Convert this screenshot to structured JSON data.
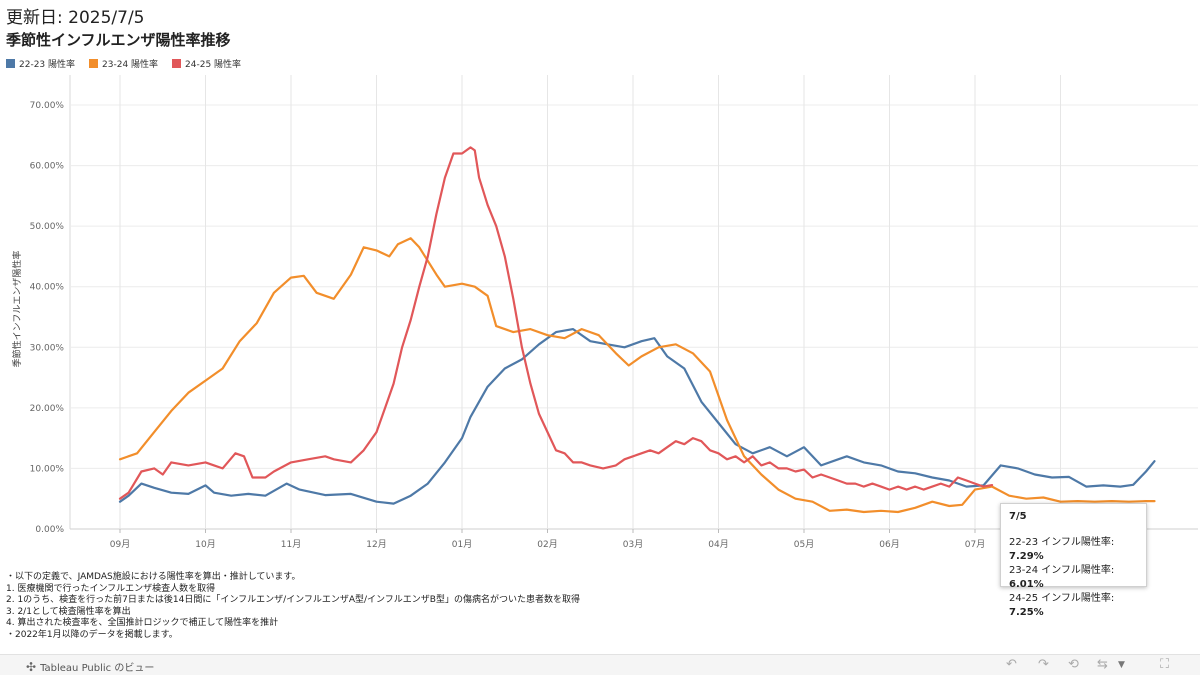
{
  "header": {
    "updated": "更新日: 2025/7/5",
    "title": "季節性インフルエンザ陽性率推移"
  },
  "legend": [
    {
      "label": "22-23 陽性率",
      "color": "#4e79a7"
    },
    {
      "label": "23-24 陽性率",
      "color": "#f28e2b"
    },
    {
      "label": "24-25 陽性率",
      "color": "#e15759"
    }
  ],
  "chart_data": {
    "type": "line",
    "ylabel": "季節性インフルエンザ陽性率",
    "ylim": [
      0,
      70
    ],
    "y_ticks": [
      "0.00%",
      "10.00%",
      "20.00%",
      "30.00%",
      "40.00%",
      "50.00%",
      "60.00%",
      "70.00%"
    ],
    "x_ticks": [
      "09月",
      "10月",
      "11月",
      "12月",
      "01月",
      "02月",
      "03月",
      "04月",
      "05月",
      "06月",
      "07月",
      "08月"
    ],
    "x_unit": "month index from start of 09月",
    "grid": true,
    "legend_position": "top-left",
    "series": [
      {
        "name": "22-23 陽性率",
        "color": "#4e79a7",
        "points": [
          [
            0,
            4.5
          ],
          [
            0.1,
            5.5
          ],
          [
            0.25,
            7.5
          ],
          [
            0.4,
            6.8
          ],
          [
            0.6,
            6.0
          ],
          [
            0.8,
            5.8
          ],
          [
            1.0,
            7.2
          ],
          [
            1.1,
            6.0
          ],
          [
            1.3,
            5.5
          ],
          [
            1.5,
            5.8
          ],
          [
            1.7,
            5.5
          ],
          [
            1.95,
            7.5
          ],
          [
            2.1,
            6.5
          ],
          [
            2.4,
            5.6
          ],
          [
            2.7,
            5.8
          ],
          [
            3.0,
            4.5
          ],
          [
            3.2,
            4.2
          ],
          [
            3.4,
            5.5
          ],
          [
            3.6,
            7.5
          ],
          [
            3.8,
            11.0
          ],
          [
            4.0,
            15.0
          ],
          [
            4.1,
            18.5
          ],
          [
            4.3,
            23.5
          ],
          [
            4.5,
            26.5
          ],
          [
            4.7,
            28.0
          ],
          [
            4.9,
            30.5
          ],
          [
            5.1,
            32.5
          ],
          [
            5.3,
            33.0
          ],
          [
            5.5,
            31.0
          ],
          [
            5.7,
            30.5
          ],
          [
            5.9,
            30.0
          ],
          [
            6.1,
            31.0
          ],
          [
            6.25,
            31.5
          ],
          [
            6.4,
            28.5
          ],
          [
            6.6,
            26.5
          ],
          [
            6.8,
            21.0
          ],
          [
            7.0,
            17.5
          ],
          [
            7.2,
            14.0
          ],
          [
            7.4,
            12.5
          ],
          [
            7.6,
            13.5
          ],
          [
            7.8,
            12.0
          ],
          [
            8.0,
            13.5
          ],
          [
            8.1,
            12.0
          ],
          [
            8.2,
            10.5
          ],
          [
            8.4,
            11.5
          ],
          [
            8.5,
            12.0
          ],
          [
            8.7,
            11.0
          ],
          [
            8.9,
            10.5
          ],
          [
            9.1,
            9.5
          ],
          [
            9.3,
            9.2
          ],
          [
            9.5,
            8.5
          ],
          [
            9.7,
            8.0
          ],
          [
            9.9,
            7.0
          ],
          [
            10.1,
            7.2
          ],
          [
            10.3,
            10.5
          ],
          [
            10.5,
            10.0
          ],
          [
            10.7,
            9.0
          ],
          [
            10.9,
            8.5
          ],
          [
            11.1,
            8.6
          ],
          [
            11.3,
            7.0
          ],
          [
            11.5,
            7.2
          ],
          [
            11.7,
            7.0
          ],
          [
            11.85,
            7.3
          ],
          [
            12.0,
            9.5
          ],
          [
            12.1,
            11.2
          ]
        ]
      },
      {
        "name": "23-24 陽性率",
        "color": "#f28e2b",
        "points": [
          [
            0,
            11.5
          ],
          [
            0.2,
            12.5
          ],
          [
            0.4,
            16.0
          ],
          [
            0.6,
            19.5
          ],
          [
            0.8,
            22.5
          ],
          [
            1.0,
            24.5
          ],
          [
            1.2,
            26.5
          ],
          [
            1.4,
            31.0
          ],
          [
            1.6,
            34.0
          ],
          [
            1.8,
            39.0
          ],
          [
            2.0,
            41.5
          ],
          [
            2.15,
            41.8
          ],
          [
            2.3,
            39.0
          ],
          [
            2.5,
            38.0
          ],
          [
            2.7,
            42.0
          ],
          [
            2.85,
            46.5
          ],
          [
            3.0,
            46.0
          ],
          [
            3.15,
            45.0
          ],
          [
            3.25,
            47.0
          ],
          [
            3.4,
            48.0
          ],
          [
            3.5,
            46.5
          ],
          [
            3.7,
            42.0
          ],
          [
            3.8,
            40.0
          ],
          [
            4.0,
            40.5
          ],
          [
            4.15,
            40.0
          ],
          [
            4.3,
            38.5
          ],
          [
            4.4,
            33.5
          ],
          [
            4.6,
            32.5
          ],
          [
            4.8,
            33.0
          ],
          [
            5.0,
            32.0
          ],
          [
            5.2,
            31.5
          ],
          [
            5.4,
            33.0
          ],
          [
            5.6,
            32.0
          ],
          [
            5.8,
            29.0
          ],
          [
            5.95,
            27.0
          ],
          [
            6.1,
            28.5
          ],
          [
            6.3,
            30.0
          ],
          [
            6.5,
            30.5
          ],
          [
            6.7,
            29.0
          ],
          [
            6.9,
            26.0
          ],
          [
            7.1,
            18.0
          ],
          [
            7.3,
            12.0
          ],
          [
            7.5,
            9.0
          ],
          [
            7.7,
            6.5
          ],
          [
            7.9,
            5.0
          ],
          [
            8.1,
            4.5
          ],
          [
            8.3,
            3.0
          ],
          [
            8.5,
            3.2
          ],
          [
            8.7,
            2.8
          ],
          [
            8.9,
            3.0
          ],
          [
            9.1,
            2.8
          ],
          [
            9.3,
            3.5
          ],
          [
            9.5,
            4.5
          ],
          [
            9.7,
            3.8
          ],
          [
            9.85,
            4.0
          ],
          [
            10.0,
            6.5
          ],
          [
            10.2,
            7.0
          ],
          [
            10.4,
            5.5
          ],
          [
            10.6,
            5.0
          ],
          [
            10.8,
            5.2
          ],
          [
            11.0,
            4.5
          ],
          [
            11.2,
            4.6
          ],
          [
            11.4,
            4.5
          ],
          [
            11.6,
            4.6
          ],
          [
            11.8,
            4.5
          ],
          [
            12.0,
            4.6
          ],
          [
            12.1,
            4.6
          ]
        ]
      },
      {
        "name": "24-25 陽性率",
        "color": "#e15759",
        "points": [
          [
            0,
            5.0
          ],
          [
            0.1,
            6.0
          ],
          [
            0.25,
            9.5
          ],
          [
            0.4,
            10.0
          ],
          [
            0.5,
            9.0
          ],
          [
            0.6,
            11.0
          ],
          [
            0.8,
            10.5
          ],
          [
            1.0,
            11.0
          ],
          [
            1.1,
            10.5
          ],
          [
            1.2,
            10.0
          ],
          [
            1.35,
            12.5
          ],
          [
            1.45,
            12.0
          ],
          [
            1.55,
            8.5
          ],
          [
            1.7,
            8.5
          ],
          [
            1.8,
            9.5
          ],
          [
            2.0,
            11.0
          ],
          [
            2.2,
            11.5
          ],
          [
            2.4,
            12.0
          ],
          [
            2.5,
            11.5
          ],
          [
            2.7,
            11.0
          ],
          [
            2.85,
            13.0
          ],
          [
            3.0,
            16.0
          ],
          [
            3.1,
            20.0
          ],
          [
            3.2,
            24.0
          ],
          [
            3.3,
            30.0
          ],
          [
            3.4,
            34.5
          ],
          [
            3.5,
            40.0
          ],
          [
            3.6,
            45.0
          ],
          [
            3.7,
            52.0
          ],
          [
            3.8,
            58.0
          ],
          [
            3.9,
            62.0
          ],
          [
            4.0,
            62.0
          ],
          [
            4.1,
            63.0
          ],
          [
            4.15,
            62.5
          ],
          [
            4.2,
            58.0
          ],
          [
            4.3,
            53.5
          ],
          [
            4.4,
            50.0
          ],
          [
            4.5,
            45.0
          ],
          [
            4.6,
            38.0
          ],
          [
            4.7,
            30.0
          ],
          [
            4.8,
            24.0
          ],
          [
            4.9,
            19.0
          ],
          [
            5.0,
            16.0
          ],
          [
            5.1,
            13.0
          ],
          [
            5.2,
            12.5
          ],
          [
            5.3,
            11.0
          ],
          [
            5.4,
            11.0
          ],
          [
            5.5,
            10.5
          ],
          [
            5.65,
            10.0
          ],
          [
            5.8,
            10.5
          ],
          [
            5.9,
            11.5
          ],
          [
            6.0,
            12.0
          ],
          [
            6.1,
            12.5
          ],
          [
            6.2,
            13.0
          ],
          [
            6.3,
            12.5
          ],
          [
            6.4,
            13.5
          ],
          [
            6.5,
            14.5
          ],
          [
            6.6,
            14.0
          ],
          [
            6.7,
            15.0
          ],
          [
            6.8,
            14.5
          ],
          [
            6.9,
            13.0
          ],
          [
            7.0,
            12.5
          ],
          [
            7.1,
            11.5
          ],
          [
            7.2,
            12.0
          ],
          [
            7.3,
            11.0
          ],
          [
            7.4,
            12.0
          ],
          [
            7.5,
            10.5
          ],
          [
            7.6,
            11.0
          ],
          [
            7.7,
            10.0
          ],
          [
            7.8,
            10.0
          ],
          [
            7.9,
            9.5
          ],
          [
            8.0,
            9.8
          ],
          [
            8.1,
            8.5
          ],
          [
            8.2,
            9.0
          ],
          [
            8.3,
            8.5
          ],
          [
            8.4,
            8.0
          ],
          [
            8.5,
            7.5
          ],
          [
            8.6,
            7.5
          ],
          [
            8.7,
            7.0
          ],
          [
            8.8,
            7.5
          ],
          [
            8.9,
            7.0
          ],
          [
            9.0,
            6.5
          ],
          [
            9.1,
            7.0
          ],
          [
            9.2,
            6.5
          ],
          [
            9.3,
            7.0
          ],
          [
            9.4,
            6.5
          ],
          [
            9.5,
            7.0
          ],
          [
            9.6,
            7.5
          ],
          [
            9.7,
            7.0
          ],
          [
            9.8,
            8.5
          ],
          [
            9.9,
            8.0
          ],
          [
            10.0,
            7.5
          ],
          [
            10.1,
            7.0
          ],
          [
            10.2,
            7.25
          ]
        ]
      }
    ]
  },
  "tooltip": {
    "date": "7/5",
    "rows": [
      {
        "label": "22-23 インフル陽性率: ",
        "value": "7.29%"
      },
      {
        "label": "23-24 インフル陽性率: ",
        "value": "6.01%"
      },
      {
        "label": "24-25 インフル陽性率: ",
        "value": "7.25%"
      }
    ]
  },
  "notes": [
    "・以下の定義で、JAMDAS施設における陽性率を算出・推計しています。",
    "1. 医療機関で行ったインフルエンザ検査人数を取得",
    "2. 1のうち、検査を行った前7日または後14日間に「インフルエンザ/インフルエンザA型/インフルエンザB型」の傷病名がついた患者数を取得",
    "3. 2/1として検査陽性率を算出",
    "4. 算出された検査率を、全国推計ロジックで補正して陽性率を推計",
    "・2022年1月以降のデータを掲載します。"
  ],
  "footer": {
    "brand": "Tableau Public のビュー"
  },
  "icons": [
    "tableau-logo-icon",
    "undo-icon",
    "redo-icon",
    "revert-icon",
    "share-icon",
    "dropdown-icon",
    "fullscreen-icon"
  ]
}
